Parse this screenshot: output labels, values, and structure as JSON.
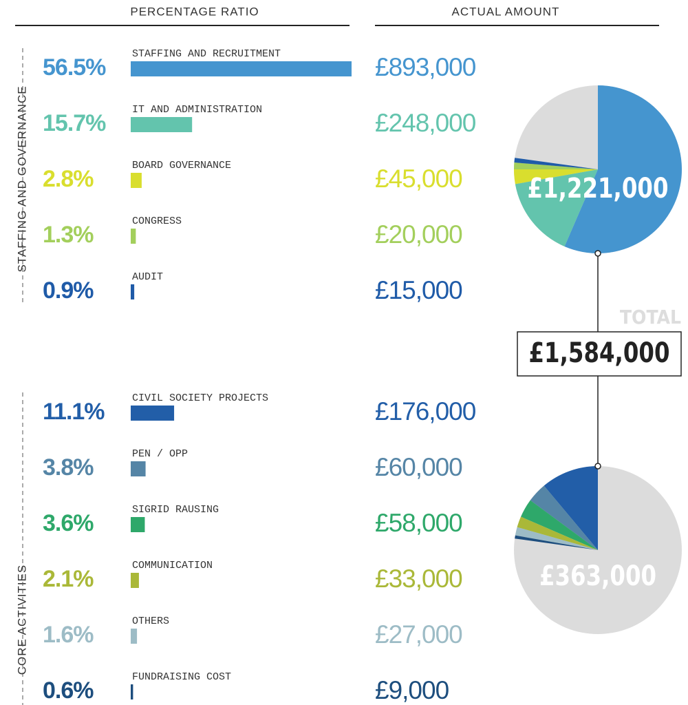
{
  "chart_data": {
    "type": "bar",
    "headers": [
      "PERCENTAGE RATIO",
      "ACTUAL AMOUNT"
    ],
    "groups": [
      {
        "name": "STAFFING AND GOVERNANCE",
        "categories": [
          "STAFFING AND RECRUITMENT",
          "IT AND ADMINISTRATION",
          "BOARD GOVERNANCE",
          "CONGRESS",
          "AUDIT"
        ],
        "values": [
          56.5,
          15.7,
          2.8,
          1.3,
          0.9
        ],
        "value_labels": [
          "56.5%",
          "15.7%",
          "2.8%",
          "1.3%",
          "0.9%"
        ],
        "amounts": [
          893000,
          248000,
          45000,
          20000,
          15000
        ],
        "amount_labels": [
          "£893,000",
          "£248,000",
          "£45,000",
          "£20,000",
          "£15,000"
        ],
        "colors": [
          "#4595cf",
          "#63c4ad",
          "#d9de2e",
          "#a3cf5c",
          "#1f5ba8"
        ],
        "total": 1221000,
        "total_label": "£1,221,000"
      },
      {
        "name": "CORE ACTIVITIES",
        "categories": [
          "CIVIL SOCIETY PROJECTS",
          "PEN / OPP",
          "SIGRID RAUSING",
          "COMMUNICATION",
          "OTHERS",
          "FUNDRAISING COST"
        ],
        "values": [
          11.1,
          3.8,
          3.6,
          2.1,
          1.6,
          0.6
        ],
        "value_labels": [
          "11.1%",
          "3.8%",
          "3.6%",
          "2.1%",
          "1.6%",
          "0.6%"
        ],
        "amounts": [
          176000,
          60000,
          58000,
          33000,
          27000,
          9000
        ],
        "amount_labels": [
          "£176,000",
          "£60,000",
          "£58,000",
          "£33,000",
          "£27,000",
          "£9,000"
        ],
        "colors": [
          "#225ea8",
          "#5585a6",
          "#2ea86a",
          "#aab838",
          "#9dbcc6",
          "#1d4e7e"
        ],
        "total": 363000,
        "total_label": "£363,000"
      }
    ],
    "total_title": "TOTAL",
    "total": 1584000,
    "total_label": "£1,584,000"
  }
}
